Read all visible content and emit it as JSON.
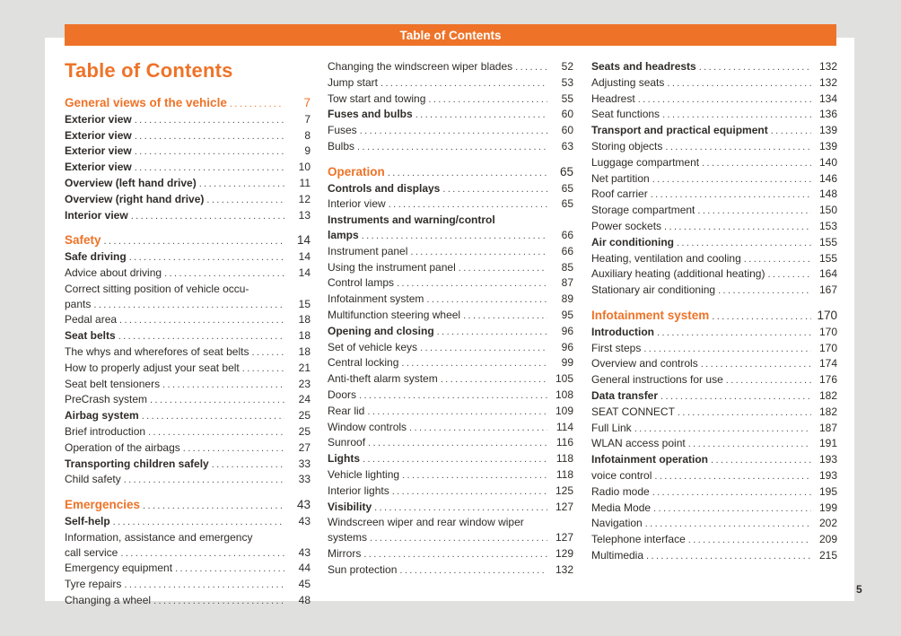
{
  "meta": {
    "page_number": "5"
  },
  "header_bar": {
    "title": "Table of Contents"
  },
  "page_title": "Table of Contents",
  "colors": {
    "accent": "#EE7328",
    "canvas_background": "#E0E0DE",
    "sheet_background": "#FFFFFF",
    "text": "#2F2C28",
    "dot_leader": "#4E4B47",
    "header_text": "#FFFFFF"
  },
  "columns": [
    {
      "entries": [
        {
          "label": "General views of the vehicle",
          "page": "7",
          "style": "section",
          "accent_full": true
        },
        {
          "label": "Exterior view",
          "page": "7",
          "style": "bold"
        },
        {
          "label": "Exterior view",
          "page": "8",
          "style": "bold"
        },
        {
          "label": "Exterior view",
          "page": "9",
          "style": "bold"
        },
        {
          "label": "Exterior view",
          "page": "10",
          "style": "bold"
        },
        {
          "label": "Overview (left hand drive)",
          "page": "11",
          "style": "bold"
        },
        {
          "label": "Overview (right hand drive)",
          "page": "12",
          "style": "bold"
        },
        {
          "label": "Interior view",
          "page": "13",
          "style": "bold"
        },
        {
          "label": "Safety",
          "page": "14",
          "style": "section",
          "gap": true
        },
        {
          "label": "Safe driving",
          "page": "14",
          "style": "bold"
        },
        {
          "label": "Advice about driving",
          "page": "14",
          "style": "normal"
        },
        {
          "pre": "Correct sitting position of vehicle occu-",
          "label": "pants",
          "page": "15",
          "style": "normal"
        },
        {
          "label": "Pedal area",
          "page": "18",
          "style": "normal"
        },
        {
          "label": "Seat belts",
          "page": "18",
          "style": "bold"
        },
        {
          "label": "The whys and wherefores of seat belts",
          "page": "18",
          "style": "normal"
        },
        {
          "label": "How to properly adjust your seat belt",
          "page": "21",
          "style": "normal"
        },
        {
          "label": "Seat belt tensioners",
          "page": "23",
          "style": "normal"
        },
        {
          "label": "PreCrash system",
          "page": "24",
          "style": "normal"
        },
        {
          "label": "Airbag system",
          "page": "25",
          "style": "bold"
        },
        {
          "label": "Brief introduction",
          "page": "25",
          "style": "normal"
        },
        {
          "label": "Operation of the airbags",
          "page": "27",
          "style": "normal"
        },
        {
          "label": "Transporting children safely",
          "page": "33",
          "style": "bold"
        },
        {
          "label": "Child safety",
          "page": "33",
          "style": "normal"
        },
        {
          "label": "Emergencies",
          "page": "43",
          "style": "section",
          "gap": true
        },
        {
          "label": "Self-help",
          "page": "43",
          "style": "bold"
        },
        {
          "pre": "Information, assistance and emergency",
          "label": "call service",
          "page": "43",
          "style": "normal"
        },
        {
          "label": "Emergency equipment",
          "page": "44",
          "style": "normal"
        },
        {
          "label": "Tyre repairs",
          "page": "45",
          "style": "normal"
        },
        {
          "label": "Changing a wheel",
          "page": "48",
          "style": "normal"
        }
      ]
    },
    {
      "entries": [
        {
          "label": "Changing the windscreen wiper blades",
          "page": "52",
          "style": "normal"
        },
        {
          "label": "Jump start",
          "page": "53",
          "style": "normal"
        },
        {
          "label": "Tow start and towing",
          "page": "55",
          "style": "normal"
        },
        {
          "label": "Fuses and bulbs",
          "page": "60",
          "style": "bold"
        },
        {
          "label": "Fuses",
          "page": "60",
          "style": "normal"
        },
        {
          "label": "Bulbs",
          "page": "63",
          "style": "normal"
        },
        {
          "label": "Operation",
          "page": "65",
          "style": "section",
          "gap": true
        },
        {
          "label": "Controls and displays",
          "page": "65",
          "style": "bold"
        },
        {
          "label": "Interior view",
          "page": "65",
          "style": "normal"
        },
        {
          "pre": "Instruments and warning/control",
          "label": "lamps",
          "page": "66",
          "style": "bold"
        },
        {
          "label": "Instrument panel",
          "page": "66",
          "style": "normal"
        },
        {
          "label": "Using the instrument panel",
          "page": "85",
          "style": "normal"
        },
        {
          "label": "Control lamps",
          "page": "87",
          "style": "normal"
        },
        {
          "label": "Infotainment system",
          "page": "89",
          "style": "normal"
        },
        {
          "label": "Multifunction steering wheel",
          "page": "95",
          "style": "normal"
        },
        {
          "label": "Opening and closing",
          "page": "96",
          "style": "bold"
        },
        {
          "label": "Set of vehicle keys",
          "page": "96",
          "style": "normal"
        },
        {
          "label": "Central locking",
          "page": "99",
          "style": "normal"
        },
        {
          "label": "Anti-theft alarm system",
          "page": "105",
          "style": "normal"
        },
        {
          "label": "Doors",
          "page": "108",
          "style": "normal"
        },
        {
          "label": "Rear lid",
          "page": "109",
          "style": "normal"
        },
        {
          "label": "Window controls",
          "page": "114",
          "style": "normal"
        },
        {
          "label": "Sunroof",
          "page": "116",
          "style": "normal"
        },
        {
          "label": "Lights",
          "page": "118",
          "style": "bold"
        },
        {
          "label": "Vehicle lighting",
          "page": "118",
          "style": "normal"
        },
        {
          "label": "Interior lights",
          "page": "125",
          "style": "normal"
        },
        {
          "label": "Visibility",
          "page": "127",
          "style": "bold"
        },
        {
          "pre": "Windscreen wiper and rear window wiper",
          "label": "systems",
          "page": "127",
          "style": "normal"
        },
        {
          "label": "Mirrors",
          "page": "129",
          "style": "normal"
        },
        {
          "label": "Sun protection",
          "page": "132",
          "style": "normal"
        }
      ]
    },
    {
      "entries": [
        {
          "label": "Seats and headrests",
          "page": "132",
          "style": "bold"
        },
        {
          "label": "Adjusting seats",
          "page": "132",
          "style": "normal"
        },
        {
          "label": "Headrest",
          "page": "134",
          "style": "normal"
        },
        {
          "label": "Seat functions",
          "page": "136",
          "style": "normal"
        },
        {
          "label": "Transport and practical equipment",
          "page": "139",
          "style": "bold"
        },
        {
          "label": "Storing objects",
          "page": "139",
          "style": "normal"
        },
        {
          "label": "Luggage compartment",
          "page": "140",
          "style": "normal"
        },
        {
          "label": "Net partition",
          "page": "146",
          "style": "normal"
        },
        {
          "label": "Roof carrier",
          "page": "148",
          "style": "normal"
        },
        {
          "label": "Storage compartment",
          "page": "150",
          "style": "normal"
        },
        {
          "label": "Power sockets",
          "page": "153",
          "style": "normal"
        },
        {
          "label": "Air conditioning",
          "page": "155",
          "style": "bold"
        },
        {
          "label": "Heating, ventilation and cooling",
          "page": "155",
          "style": "normal"
        },
        {
          "label": "Auxiliary heating (additional heating)",
          "page": "164",
          "style": "normal"
        },
        {
          "label": "Stationary air conditioning",
          "page": "167",
          "style": "normal"
        },
        {
          "label": "Infotainment system",
          "page": "170",
          "style": "section",
          "gap": true
        },
        {
          "label": "Introduction",
          "page": "170",
          "style": "bold"
        },
        {
          "label": "First steps",
          "page": "170",
          "style": "normal"
        },
        {
          "label": "Overview and controls",
          "page": "174",
          "style": "normal"
        },
        {
          "label": "General instructions for use",
          "page": "176",
          "style": "normal"
        },
        {
          "label": "Data transfer",
          "page": "182",
          "style": "bold"
        },
        {
          "label": "SEAT CONNECT",
          "page": "182",
          "style": "normal"
        },
        {
          "label": "Full Link",
          "page": "187",
          "style": "normal"
        },
        {
          "label": "WLAN access point",
          "page": "191",
          "style": "normal"
        },
        {
          "label": "Infotainment operation",
          "page": "193",
          "style": "bold"
        },
        {
          "label": "voice control",
          "page": "193",
          "style": "normal"
        },
        {
          "label": "Radio mode",
          "page": "195",
          "style": "normal"
        },
        {
          "label": "Media Mode",
          "page": "199",
          "style": "normal"
        },
        {
          "label": "Navigation",
          "page": "202",
          "style": "normal"
        },
        {
          "label": "Telephone interface",
          "page": "209",
          "style": "normal"
        },
        {
          "label": "Multimedia",
          "page": "215",
          "style": "normal"
        }
      ]
    }
  ]
}
